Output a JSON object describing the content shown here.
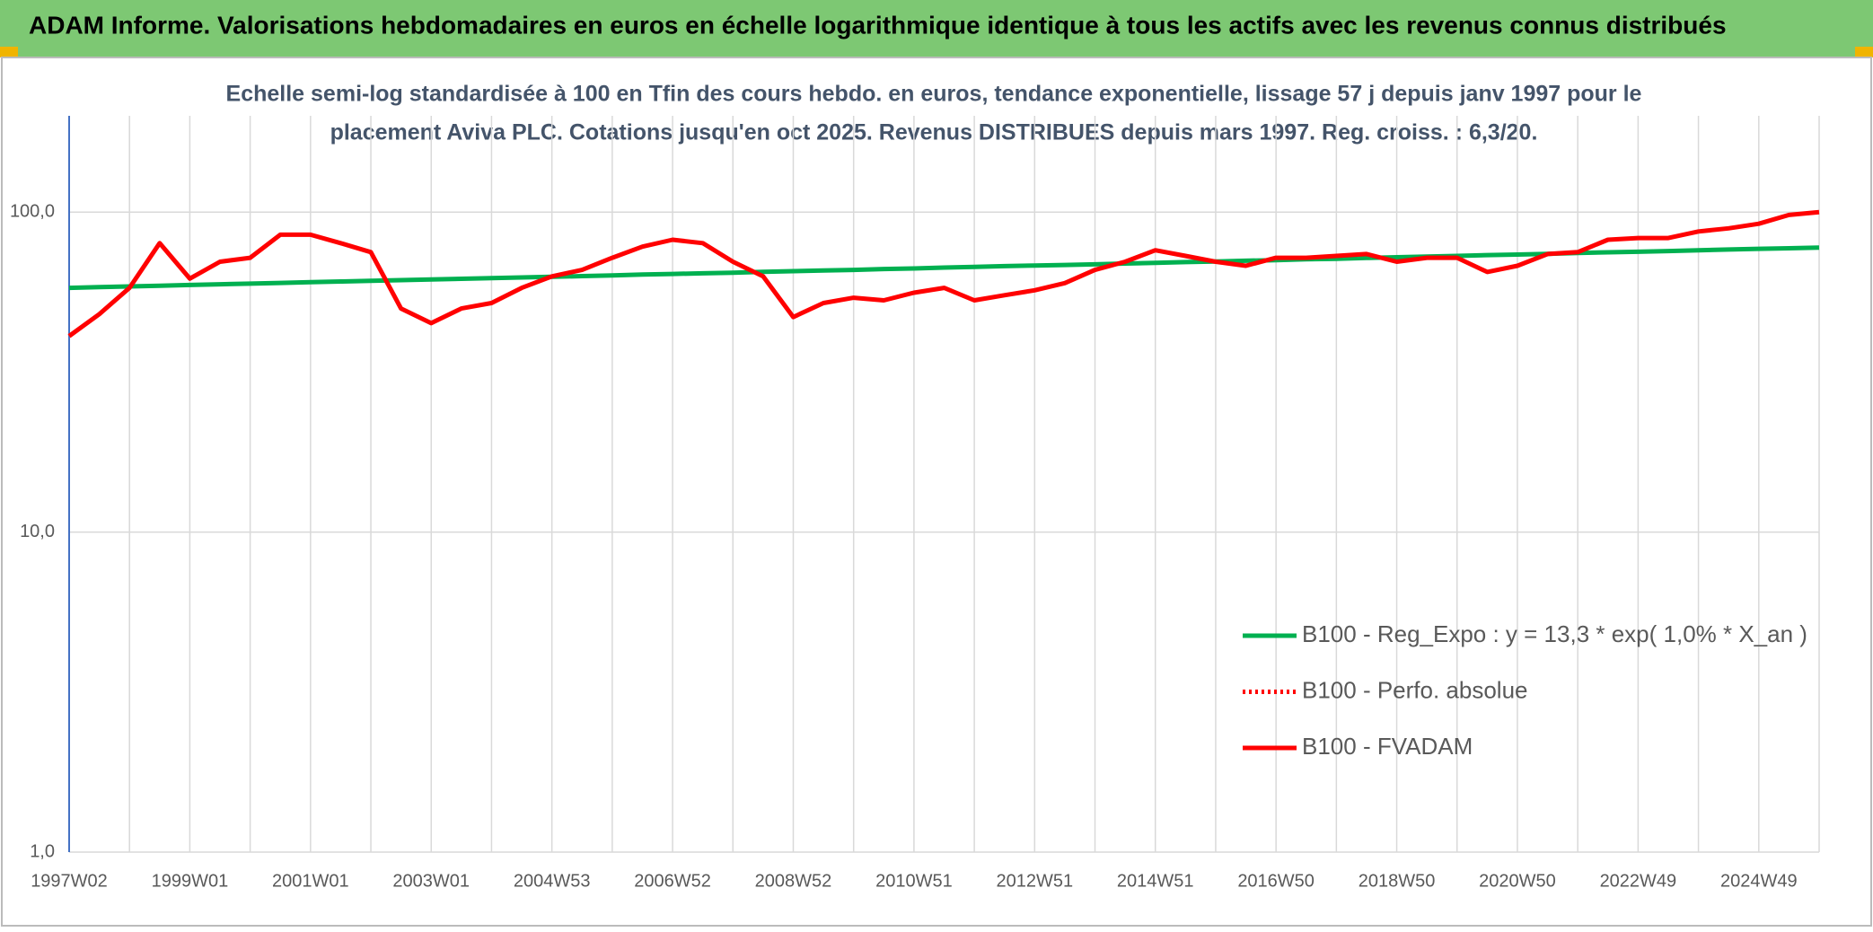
{
  "header": {
    "title": "ADAM Informe. Valorisations hebdomadaires en euros en échelle logarithmique identique à tous les actifs avec les revenus connus distribués"
  },
  "chart_data": {
    "type": "line",
    "subtitle": [
      "Echelle semi-log standardisée à 100 en Tfin des cours hebdo. en euros, tendance exponentielle, lissage 57 j depuis janv 1997 pour le",
      "placement Aviva PLC. Cotations jusqu'en oct 2025. Revenus DISTRIBUES depuis mars 1997. Reg. croiss. : 6,3/20."
    ],
    "categories": [
      "1997W02",
      null,
      null,
      null,
      "1999W01",
      null,
      null,
      null,
      "2001W01",
      null,
      null,
      null,
      "2003W01",
      null,
      null,
      null,
      "2004W53",
      null,
      null,
      null,
      "2006W52",
      null,
      null,
      null,
      "2008W52",
      null,
      null,
      null,
      "2010W51",
      null,
      null,
      null,
      "2012W51",
      null,
      null,
      null,
      "2014W51",
      null,
      null,
      null,
      "2016W50",
      null,
      null,
      null,
      "2018W50",
      null,
      null,
      null,
      "2020W50",
      null,
      null,
      null,
      "2022W49",
      null,
      null,
      null,
      "2024W49",
      null,
      null
    ],
    "series": [
      {
        "name": "B100 - Reg_Expo : y = 13,3 * exp( 1,0% *  X_an )",
        "color": "#00b050",
        "dash": "solid",
        "values": [
          58.0,
          58.3,
          58.6,
          58.9,
          59.2,
          59.5,
          59.8,
          60.1,
          60.4,
          60.7,
          61.0,
          61.3,
          61.6,
          61.9,
          62.2,
          62.5,
          62.8,
          63.1,
          63.4,
          63.8,
          64.1,
          64.4,
          64.7,
          65.1,
          65.4,
          65.7,
          66.0,
          66.4,
          66.7,
          67.1,
          67.4,
          67.8,
          68.1,
          68.4,
          68.7,
          69.1,
          69.4,
          69.8,
          70.1,
          70.5,
          70.8,
          71.2,
          71.5,
          71.9,
          72.3,
          72.6,
          73.0,
          73.4,
          73.7,
          74.1,
          74.5,
          74.9,
          75.2,
          75.6,
          76.0,
          76.4,
          76.8,
          77.1,
          77.5
        ]
      },
      {
        "name": "B100 - Perfo. absolue",
        "color": "#ff0000",
        "dash": "dotted",
        "values": [
          null,
          null,
          null,
          null,
          null,
          null,
          null,
          null,
          null,
          null,
          null,
          null,
          null,
          null,
          null,
          null,
          null,
          null,
          null,
          null,
          null,
          null,
          null,
          null,
          null,
          null,
          null,
          null,
          null,
          null,
          null,
          null,
          null,
          null,
          null,
          null,
          null,
          null,
          null,
          null,
          null,
          null,
          null,
          null,
          null,
          null,
          null,
          null,
          null,
          null,
          null,
          null,
          null,
          null,
          null,
          null,
          null,
          null,
          null
        ]
      },
      {
        "name": "B100 - FVADAM",
        "color": "#ff0000",
        "dash": "solid",
        "values": [
          41,
          48,
          58,
          80,
          62,
          70,
          72,
          85,
          85,
          80,
          75,
          50,
          45,
          50,
          52,
          58,
          63,
          66,
          72,
          78,
          82,
          80,
          70,
          63,
          47,
          52,
          54,
          53,
          56,
          58,
          53,
          55,
          57,
          60,
          66,
          70,
          76,
          73,
          70,
          68,
          72,
          72,
          73,
          74,
          70,
          72,
          72,
          65,
          68,
          74,
          75,
          82,
          83,
          83,
          87,
          89,
          92,
          98,
          100
        ]
      }
    ],
    "log_scale": true,
    "ylim": [
      1,
      200
    ],
    "yticks": [
      {
        "value": 1,
        "label": "1,0"
      },
      {
        "value": 10,
        "label": "10,0"
      },
      {
        "value": 100,
        "label": "100,0"
      }
    ],
    "grid": true,
    "legend": "bottom-right"
  }
}
